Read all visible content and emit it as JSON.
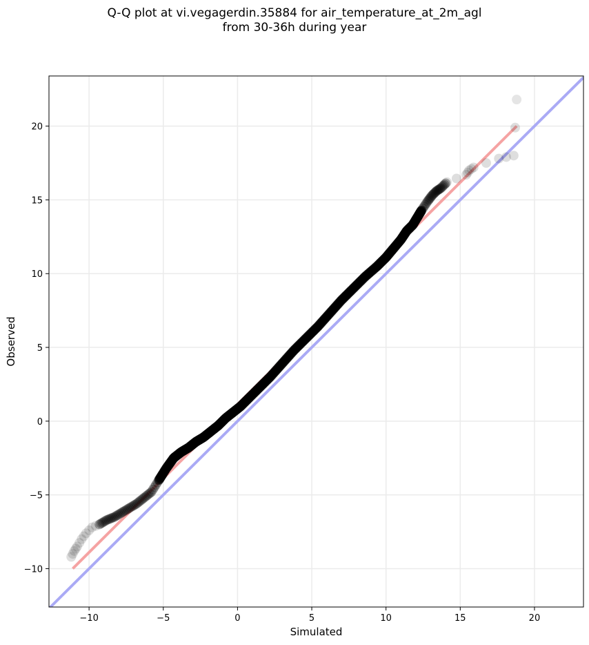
{
  "chart_data": {
    "type": "scatter",
    "title": "Q-Q plot at vi.vegagerdin.35884 for air_temperature_at_2m_agl\nfrom 30-36h during year",
    "xlabel": "Simulated",
    "ylabel": "Observed",
    "xlim": [
      -12.7,
      23.3
    ],
    "ylim": [
      -12.6,
      23.4
    ],
    "xticks": [
      -10,
      -5,
      0,
      5,
      10,
      15,
      20
    ],
    "yticks": [
      -10,
      -5,
      0,
      5,
      10,
      15,
      20
    ],
    "tick_labels": {
      "x": [
        "−10",
        "−5",
        "0",
        "5",
        "10",
        "15",
        "20"
      ],
      "y": [
        "−10",
        "−5",
        "0",
        "5",
        "10",
        "15",
        "20"
      ]
    },
    "grid": true,
    "legend": "none",
    "identity_line": {
      "color": "#aaaaf5",
      "from": [
        -12.7,
        -12.7
      ],
      "to": [
        23.3,
        23.3
      ]
    },
    "fit_line": {
      "color": "#f5a3a3",
      "from": [
        -11.1,
        -10.0
      ],
      "to": [
        18.8,
        20.0
      ]
    },
    "quantile_curve": {
      "x": [
        -11.2,
        -11.0,
        -10.8,
        -10.5,
        -10.2,
        -9.8,
        -9.3,
        -8.8,
        -8.3,
        -7.8,
        -7.3,
        -6.8,
        -6.3,
        -5.8,
        -5.3,
        -4.8,
        -4.3,
        -3.8,
        -3.3,
        -2.8,
        -2.3,
        -1.8,
        -1.3,
        -0.8,
        -0.3,
        0.2,
        0.8,
        1.5,
        2.2,
        3.0,
        3.8,
        4.6,
        5.4,
        6.2,
        7.0,
        7.8,
        8.6,
        9.4,
        10.0,
        10.5,
        11.0,
        11.4,
        11.8,
        12.1,
        12.4,
        12.8,
        13.1,
        13.4,
        13.7,
        14.1,
        15.4,
        15.6,
        15.9,
        17.6,
        18.6,
        18.8
      ],
      "y": [
        -9.2,
        -8.8,
        -8.5,
        -8.0,
        -7.6,
        -7.2,
        -7.0,
        -6.7,
        -6.5,
        -6.2,
        -5.9,
        -5.6,
        -5.2,
        -4.8,
        -4.0,
        -3.2,
        -2.5,
        -2.1,
        -1.8,
        -1.4,
        -1.1,
        -0.7,
        -0.3,
        0.2,
        0.6,
        1.0,
        1.6,
        2.3,
        3.0,
        3.9,
        4.8,
        5.6,
        6.4,
        7.3,
        8.2,
        9.0,
        9.8,
        10.5,
        11.1,
        11.7,
        12.3,
        12.9,
        13.3,
        13.8,
        14.3,
        14.9,
        15.3,
        15.6,
        15.8,
        16.2,
        16.7,
        17.0,
        17.2,
        17.8,
        18.0,
        21.8
      ]
    }
  }
}
